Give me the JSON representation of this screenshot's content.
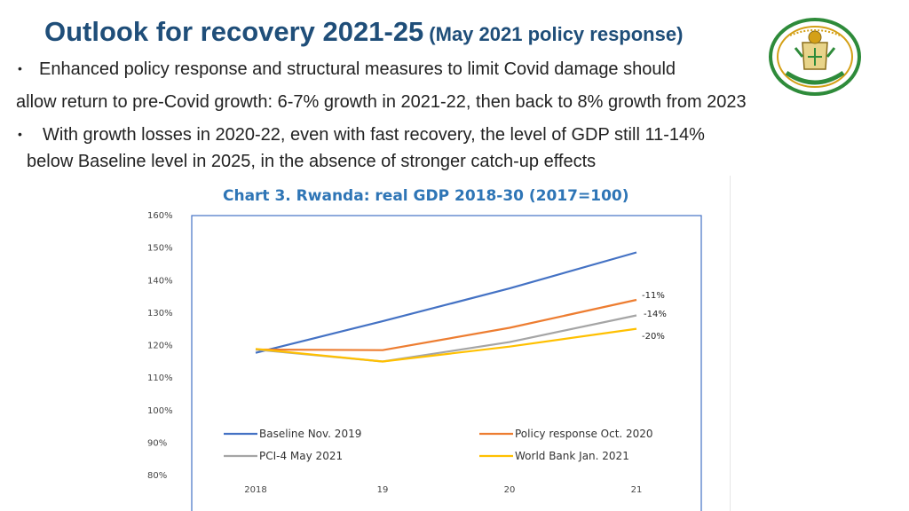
{
  "slide": {
    "title_main": "Outlook for recovery 2021-25",
    "title_sub": "(May 2021 policy response)",
    "bullet_char": "•",
    "bullet1_line1": "Enhanced policy response and structural measures to limit Covid damage should",
    "bullet1_line2": "allow return to pre-Covid growth: 6-7% growth in 2021-22, then back to 8% growth from 2023",
    "bullet2_line1": "With growth losses in 2020-22, even with fast recovery, the level of GDP still 11-14%",
    "bullet2_line2": "below Baseline level in 2025, in the absence of stronger catch-up effects"
  },
  "emblem": {
    "icon": "rwanda-coat-of-arms",
    "green": "#2e8b3a",
    "gold": "#d4a017"
  },
  "chart_data": {
    "type": "line",
    "title": "Chart 3. Rwanda: real GDP 2018-30 (2017=100)",
    "categories": [
      "2018",
      "19",
      "20",
      "21"
    ],
    "y_ticks": [
      "80%",
      "90%",
      "100%",
      "110%",
      "120%",
      "130%",
      "140%",
      "150%",
      "160%"
    ],
    "ylim": [
      80,
      160
    ],
    "xlabel": "",
    "ylabel": "",
    "legend_position": "bottom",
    "series": [
      {
        "name": "Baseline Nov. 2019",
        "color": "#4472c4",
        "values": [
          117.5,
          127.2,
          137.3,
          148.4
        ]
      },
      {
        "name": "Policy response Oct. 2020",
        "color": "#ed7d31",
        "values": [
          118.5,
          118.3,
          125.2,
          133.8
        ]
      },
      {
        "name": "PCI-4 May 2021",
        "color": "#a5a5a5",
        "values": [
          118.5,
          114.8,
          120.8,
          129.0
        ]
      },
      {
        "name": "World Bank Jan. 2021",
        "color": "#ffc000",
        "values": [
          118.7,
          114.8,
          119.4,
          124.9
        ]
      }
    ],
    "annotations": [
      "-11%",
      "-14%",
      "-20%"
    ]
  }
}
